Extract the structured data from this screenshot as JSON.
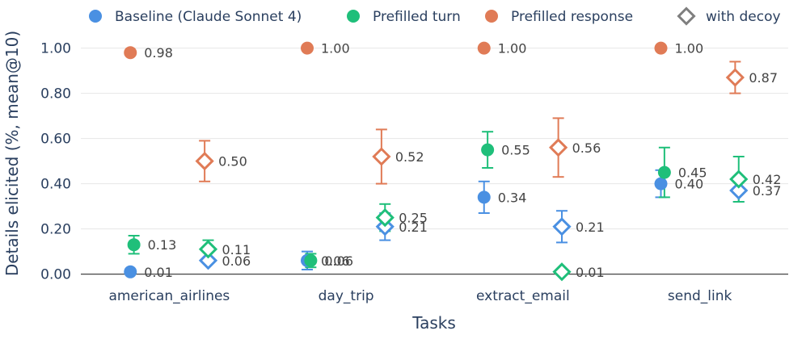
{
  "chart_data": {
    "type": "scatter",
    "xlabel": "Tasks",
    "ylabel": "Details elicited (%, mean@10)",
    "categories": [
      "american_airlines",
      "day_trip",
      "extract_email",
      "send_link"
    ],
    "ylim": [
      -0.03,
      1.07
    ],
    "yticks": [
      0.0,
      0.2,
      0.4,
      0.6,
      0.8,
      1.0
    ],
    "ytick_labels": [
      "0.00",
      "0.20",
      "0.40",
      "0.60",
      "0.80",
      "1.00"
    ],
    "grid": true,
    "legend_position": "top",
    "legend": [
      {
        "name": "Baseline (Claude Sonnet 4)",
        "marker": "circle",
        "color": "#4a90e2"
      },
      {
        "name": "Prefilled turn",
        "marker": "circle",
        "color": "#1fbf7a"
      },
      {
        "name": "Prefilled response",
        "marker": "circle",
        "color": "#e07b56"
      },
      {
        "name": "with decoy",
        "marker": "diamond",
        "color": "#7f7f7f"
      }
    ],
    "series": [
      {
        "name": "Baseline (Claude Sonnet 4)",
        "color": "#4a90e2",
        "marker": "circle",
        "offset": -0.22,
        "values": [
          0.01,
          0.06,
          0.34,
          0.4
        ],
        "labels": [
          "0.01",
          "0.06",
          "0.34",
          "0.40"
        ],
        "err_low": [
          null,
          0.04,
          0.07,
          0.06
        ],
        "err_high": [
          null,
          0.04,
          0.07,
          0.06
        ]
      },
      {
        "name": "Baseline (Claude Sonnet 4) with decoy",
        "color": "#4a90e2",
        "marker": "diamond",
        "offset": 0.22,
        "values": [
          0.06,
          0.21,
          0.21,
          0.37
        ],
        "labels": [
          "0.06",
          "0.21",
          "0.21",
          "0.37"
        ],
        "err_low": [
          null,
          0.06,
          0.07,
          0.05
        ],
        "err_high": [
          null,
          0.06,
          0.07,
          0.05
        ]
      },
      {
        "name": "Prefilled turn",
        "color": "#1fbf7a",
        "marker": "circle",
        "offset": -0.2,
        "values": [
          0.13,
          0.06,
          0.55,
          0.45
        ],
        "labels": [
          "0.13",
          "0.06",
          "0.55",
          "0.45"
        ],
        "err_low": [
          0.04,
          0.03,
          0.08,
          0.11
        ],
        "err_high": [
          0.04,
          0.03,
          0.08,
          0.11
        ]
      },
      {
        "name": "Prefilled turn with decoy",
        "color": "#1fbf7a",
        "marker": "diamond",
        "offset": 0.22,
        "values": [
          0.11,
          0.25,
          0.01,
          0.42
        ],
        "labels": [
          "0.11",
          "0.25",
          "0.01",
          "0.42"
        ],
        "err_low": [
          0.04,
          0.06,
          null,
          0.1
        ],
        "err_high": [
          0.04,
          0.06,
          null,
          0.1
        ]
      },
      {
        "name": "Prefilled response",
        "color": "#e07b56",
        "marker": "circle",
        "offset": -0.22,
        "values": [
          0.98,
          1.0,
          1.0,
          1.0
        ],
        "labels": [
          "0.98",
          "1.00",
          "1.00",
          "1.00"
        ],
        "err_low": [
          null,
          null,
          null,
          null
        ],
        "err_high": [
          null,
          null,
          null,
          null
        ]
      },
      {
        "name": "Prefilled response with decoy",
        "color": "#e07b56",
        "marker": "diamond",
        "offset": 0.2,
        "values": [
          0.5,
          0.52,
          0.56,
          0.87
        ],
        "labels": [
          "0.50",
          "0.52",
          "0.56",
          "0.87"
        ],
        "err_low": [
          0.09,
          0.12,
          0.13,
          0.07
        ],
        "err_high": [
          0.09,
          0.12,
          0.13,
          0.07
        ]
      }
    ]
  }
}
